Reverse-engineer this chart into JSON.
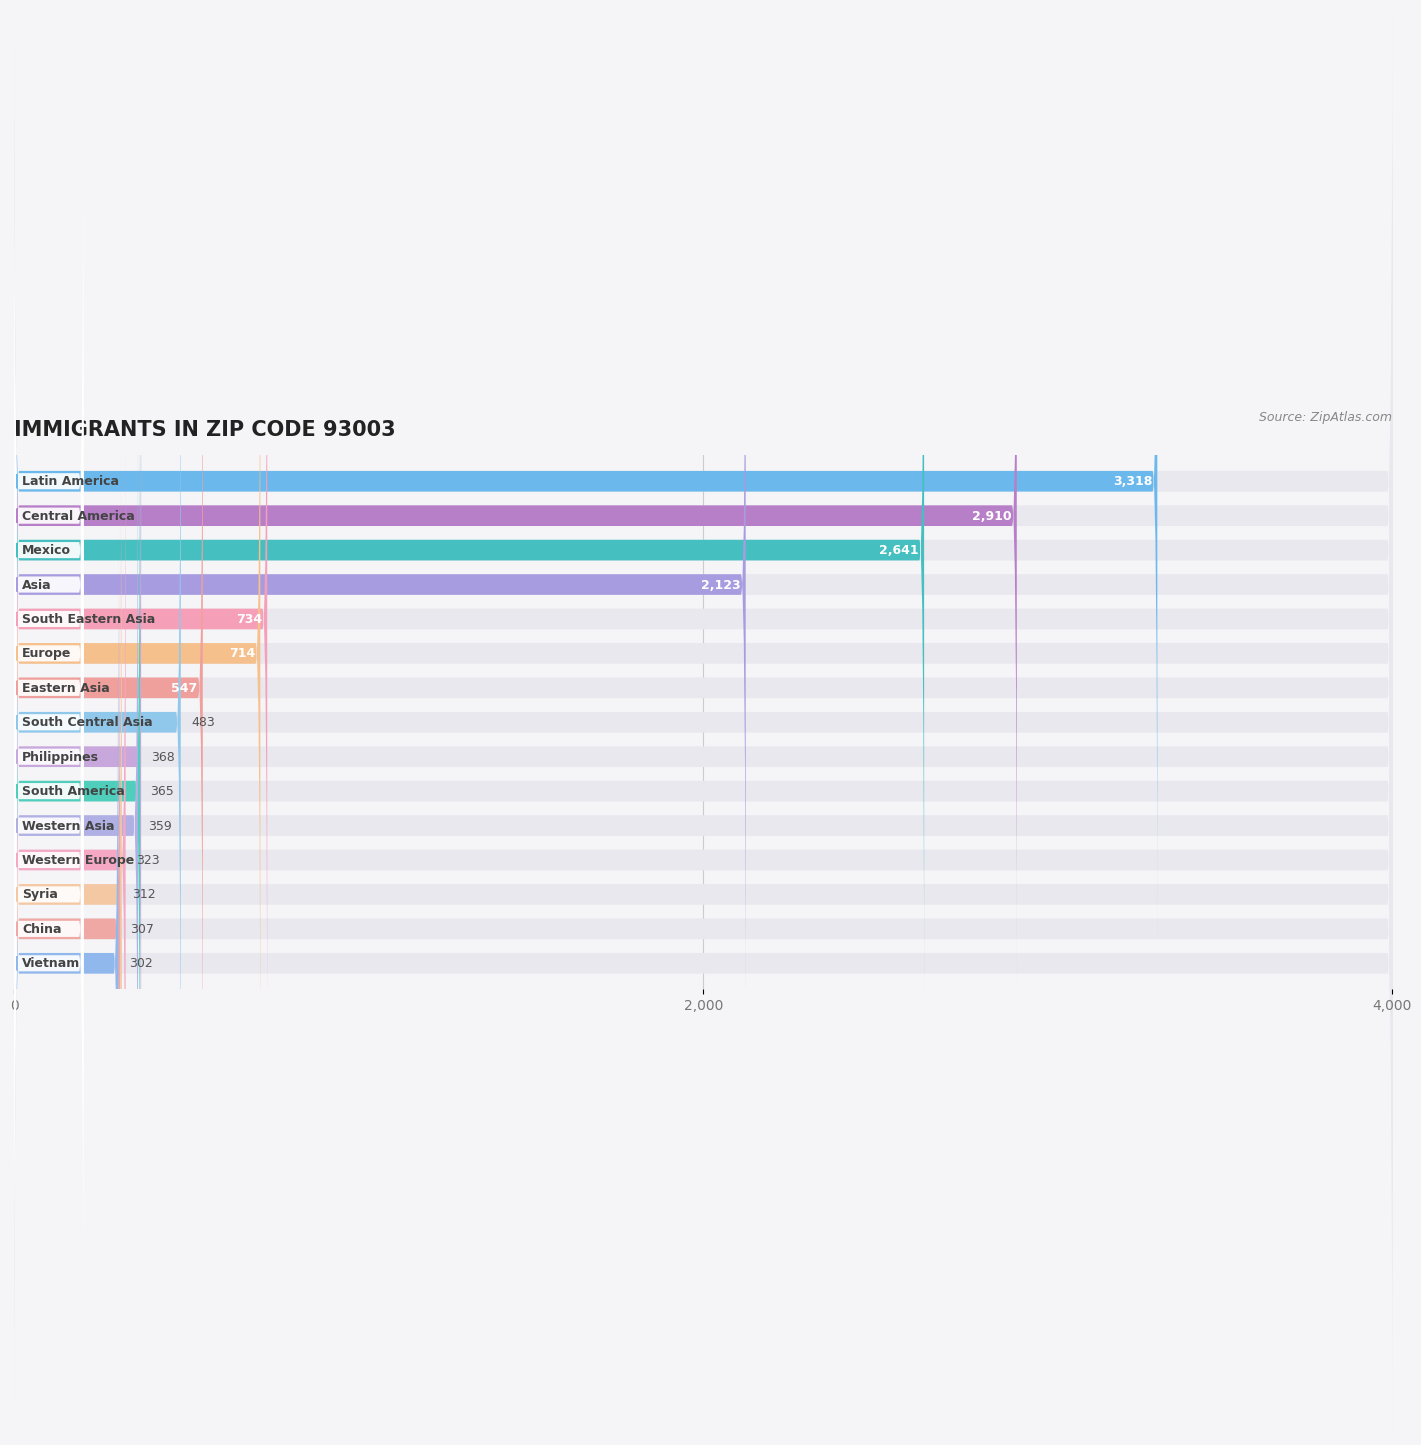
{
  "title": "IMMIGRANTS IN ZIP CODE 93003",
  "source": "Source: ZipAtlas.com",
  "categories": [
    "Latin America",
    "Central America",
    "Mexico",
    "Asia",
    "South Eastern Asia",
    "Europe",
    "Eastern Asia",
    "South Central Asia",
    "Philippines",
    "South America",
    "Western Asia",
    "Western Europe",
    "Syria",
    "China",
    "Vietnam"
  ],
  "values": [
    3318,
    2910,
    2641,
    2123,
    734,
    714,
    547,
    483,
    368,
    365,
    359,
    323,
    312,
    307,
    302
  ],
  "bar_colors": [
    "#6ab8ec",
    "#b87fc9",
    "#45bfc0",
    "#a89ce0",
    "#f5a0b8",
    "#f5c08c",
    "#f0a09c",
    "#90c8ec",
    "#c8a8dc",
    "#50cebc",
    "#b0b0e4",
    "#f5a8c4",
    "#f5c8a4",
    "#f0a8a4",
    "#90b8ec"
  ],
  "dot_colors": [
    "#6ab8ec",
    "#b87fc9",
    "#45bfc0",
    "#a89ce0",
    "#f5a0b8",
    "#f5c08c",
    "#f0a09c",
    "#90c8ec",
    "#c8a8dc",
    "#50cebc",
    "#b0b0e0",
    "#f5a8c4",
    "#f5c8a4",
    "#f0a8a4",
    "#90b8ec"
  ],
  "xlim": [
    0,
    4000
  ],
  "background_color": "#f5f5f7",
  "bar_background_color": "#e8e8ee",
  "label_color": "#444444",
  "title_color": "#222222",
  "bar_height": 0.6,
  "x_ticks": [
    0,
    2000,
    4000
  ],
  "value_threshold": 500,
  "value_inside_color": "#ffffff",
  "value_outside_color": "#555555"
}
